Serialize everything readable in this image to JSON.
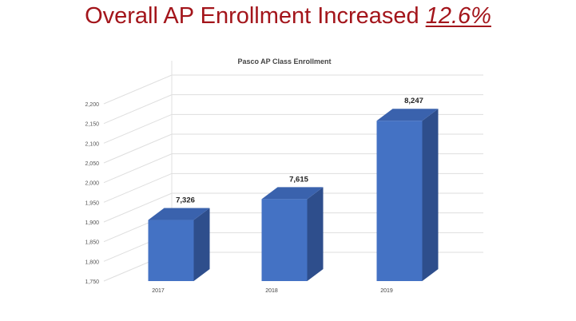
{
  "slide": {
    "headline": "Overall AP Enrollment Increased",
    "headline_value": "12.6%",
    "headline_color": "#a3151b"
  },
  "chart_data": {
    "type": "bar",
    "title": "Pasco AP Class Enrollment",
    "xlabel": "",
    "ylabel": "",
    "categories": [
      "2017",
      "2018",
      "2019"
    ],
    "values": [
      1905,
      1958,
      2157
    ],
    "data_labels": [
      "7,326",
      "7,615",
      "8,247"
    ],
    "yticks": [
      "1,750",
      "1,800",
      "1,850",
      "1,900",
      "1,950",
      "2,000",
      "2,050",
      "2,100",
      "2,150",
      "2,200"
    ],
    "ylim": [
      1750,
      2200
    ],
    "grid": true,
    "legend": "none",
    "bar_color": "#4472c4",
    "bar_side_color": "#2e4e8c",
    "bar_top_color": "#3a62ad"
  }
}
